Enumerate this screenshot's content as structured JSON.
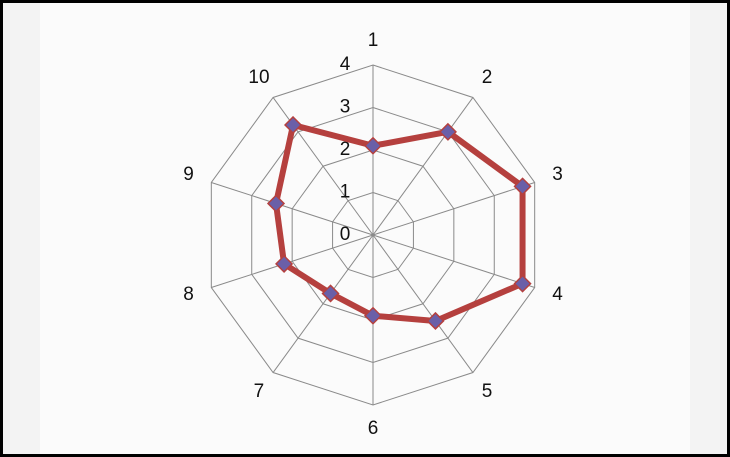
{
  "chart_data": {
    "type": "radar",
    "categories": [
      "1",
      "2",
      "3",
      "4",
      "5",
      "6",
      "7",
      "8",
      "9",
      "10"
    ],
    "values": [
      2.1,
      3,
      3.7,
      3.7,
      2.5,
      1.9,
      1.7,
      2.2,
      2.4,
      3.2
    ],
    "color": "#b5403e",
    "marker_color": "#6a5fa8",
    "rlim": [
      0,
      4
    ],
    "rticks": [
      0,
      1,
      2,
      3,
      4
    ],
    "grid": true
  }
}
